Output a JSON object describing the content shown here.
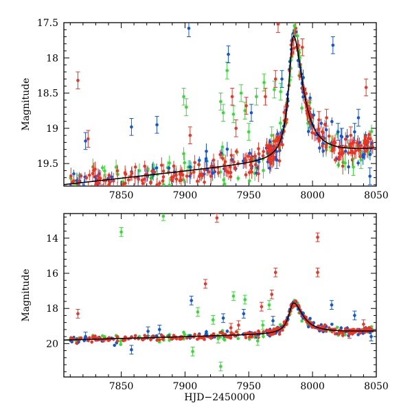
{
  "chart_data": [
    {
      "type": "scatter",
      "panel": "top",
      "title": "",
      "xlabel": "",
      "ylabel": "Magnitude",
      "xlim": [
        7805,
        8050
      ],
      "ylim": [
        19.82,
        17.5
      ],
      "y_inverted": true,
      "x_ticks": [
        7850,
        7900,
        7950,
        8000,
        8050
      ],
      "y_ticks": [
        17.5,
        18,
        18.5,
        19,
        19.5
      ],
      "grid": false,
      "legend": "none",
      "colors": {
        "green": "#33dd33",
        "blue": "#1155dd",
        "red": "#ee3322",
        "model": "#000000"
      },
      "model_curve": {
        "baseline": 19.55,
        "peak_mag": 17.8,
        "t0": 7985,
        "rise_width": 4.5,
        "decay_width": 9,
        "slope_per_day": -0.002
      },
      "outliers": {
        "green": [
          [
            7928,
            18.62
          ],
          [
            7930,
            18.78
          ],
          [
            7933,
            18.18
          ],
          [
            7938,
            18.8
          ],
          [
            7944,
            18.5
          ],
          [
            7956,
            18.55
          ],
          [
            7962,
            18.35
          ],
          [
            7975,
            18.48
          ],
          [
            7983,
            18.15
          ],
          [
            7986,
            17.55
          ],
          [
            7990,
            18.0
          ],
          [
            7899,
            18.55
          ],
          [
            7901,
            18.7
          ],
          [
            7947,
            18.75
          ],
          [
            7950,
            19.05
          ],
          [
            7970,
            18.45
          ],
          [
            7968,
            19.1
          ],
          [
            8032,
            19.55
          ],
          [
            8038,
            19.45
          ]
        ],
        "blue": [
          [
            7903,
            17.58
          ],
          [
            7934,
            17.95
          ],
          [
            7952,
            18.78
          ],
          [
            7972,
            19.45
          ],
          [
            7976,
            18.3
          ],
          [
            8016,
            17.82
          ],
          [
            8020,
            19.05
          ],
          [
            8023,
            19.12
          ],
          [
            8033,
            19.05
          ],
          [
            8036,
            18.85
          ],
          [
            8045,
            19.68
          ],
          [
            7878,
            18.95
          ],
          [
            7858,
            18.98
          ],
          [
            7822,
            19.18
          ]
        ],
        "red": [
          [
            7816,
            18.32
          ],
          [
            7937,
            18.55
          ],
          [
            7948,
            18.68
          ],
          [
            7963,
            18.55
          ],
          [
            7971,
            18.3
          ],
          [
            7973,
            17.52
          ],
          [
            7992,
            17.85
          ],
          [
            7998,
            18.72
          ],
          [
            8005,
            18.88
          ],
          [
            8011,
            18.85
          ],
          [
            8030,
            19.1
          ],
          [
            8042,
            18.42
          ],
          [
            7824,
            19.15
          ],
          [
            7904,
            19.1
          ],
          [
            7940,
            19.0
          ]
        ]
      }
    },
    {
      "type": "scatter",
      "panel": "bottom",
      "title": "",
      "xlabel": "HJD−2450000",
      "ylabel": "Magnitude",
      "xlim": [
        7805,
        8050
      ],
      "ylim": [
        21.9,
        12.6
      ],
      "y_inverted": true,
      "x_ticks": [
        7850,
        7900,
        7950,
        8000,
        8050
      ],
      "y_ticks": [
        14,
        16,
        18,
        20
      ],
      "grid": false,
      "legend": "none",
      "colors": {
        "green": "#33dd33",
        "blue": "#1155dd",
        "red": "#ee3322",
        "model": "#000000"
      },
      "model_curve": {
        "baseline": 19.55,
        "peak_mag": 17.8,
        "t0": 7985,
        "rise_width": 4.5,
        "decay_width": 9,
        "slope_per_day": -0.002
      },
      "outliers": {
        "green": [
          [
            7850,
            13.65
          ],
          [
            7883,
            12.75
          ],
          [
            7928,
            21.3
          ],
          [
            7906,
            20.45
          ],
          [
            7926,
            19.72
          ],
          [
            7938,
            17.3
          ],
          [
            7947,
            17.5
          ],
          [
            7957,
            19.85
          ],
          [
            7966,
            17.8
          ],
          [
            7910,
            18.2
          ],
          [
            7922,
            18.65
          ],
          [
            7961,
            18.95
          ]
        ],
        "blue": [
          [
            7905,
            17.55
          ],
          [
            7930,
            18.55
          ],
          [
            7946,
            18.3
          ],
          [
            8015,
            17.8
          ],
          [
            8033,
            18.4
          ],
          [
            7858,
            20.35
          ],
          [
            7822,
            19.6
          ],
          [
            8046,
            19.6
          ],
          [
            7871,
            19.3
          ],
          [
            7880,
            19.2
          ],
          [
            7969,
            18.7
          ]
        ],
        "red": [
          [
            7816,
            18.3
          ],
          [
            7925,
            12.85
          ],
          [
            7916,
            16.6
          ],
          [
            7971,
            15.95
          ],
          [
            7968,
            17.2
          ],
          [
            7960,
            17.9
          ],
          [
            7942,
            18.95
          ],
          [
            7936,
            19.1
          ],
          [
            8004,
            13.95
          ],
          [
            8004,
            15.95
          ],
          [
            8029,
            19.45
          ],
          [
            8040,
            18.9
          ]
        ]
      }
    }
  ]
}
